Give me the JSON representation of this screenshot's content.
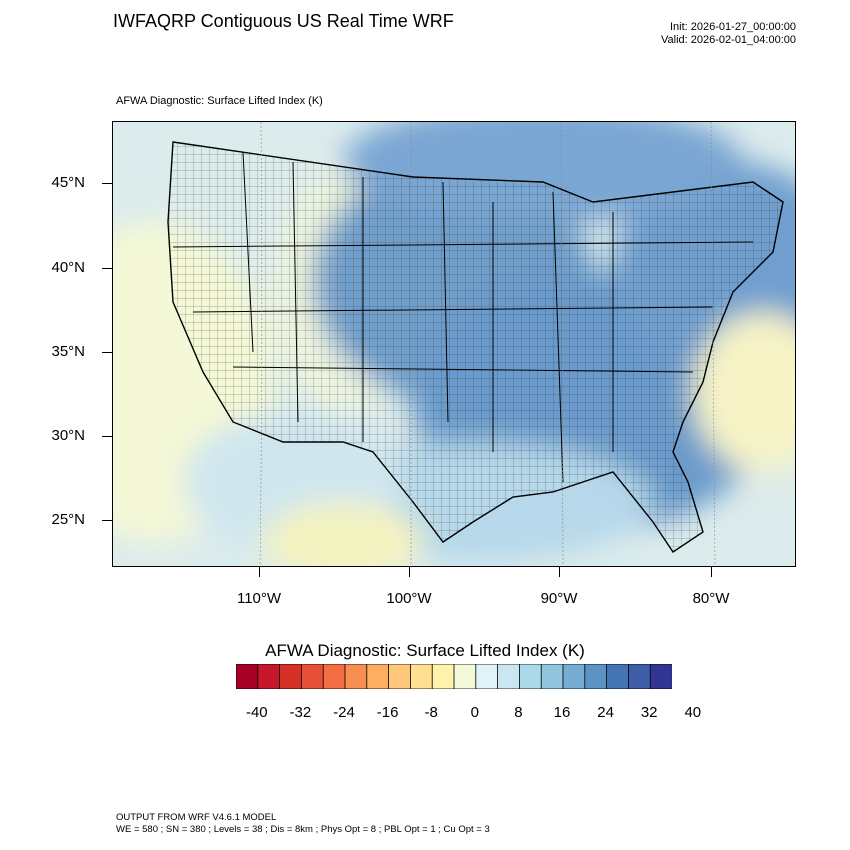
{
  "header": {
    "title": "IWFAQRP Contiguous US Real Time WRF",
    "init": "Init: 2026-01-27_00:00:00",
    "valid": "Valid: 2026-02-01_04:00:00"
  },
  "map": {
    "subtitle": "AFWA Diagnostic: Surface Lifted Index   (K)",
    "lat_labels": [
      "45°N",
      "40°N",
      "35°N",
      "30°N",
      "25°N"
    ],
    "lon_labels": [
      "110°W",
      "100°W",
      "90°W",
      "80°W"
    ]
  },
  "colorbar": {
    "title": "AFWA Diagnostic: Surface Lifted Index  (K)",
    "labels": [
      "-40",
      "-32",
      "-24",
      "-16",
      "-8",
      "0",
      "8",
      "16",
      "24",
      "32",
      "40"
    ],
    "colors": [
      "#a50026",
      "#c7172b",
      "#d73027",
      "#e8503a",
      "#f46d43",
      "#f88f52",
      "#fdae61",
      "#fec77a",
      "#fee090",
      "#fff2ab",
      "#f4fad8",
      "#e0f3f8",
      "#c8e7f1",
      "#abd9e9",
      "#92c5de",
      "#74add1",
      "#5a93c4",
      "#4575b4",
      "#3e5fa8",
      "#313695"
    ]
  },
  "footer": {
    "model": "OUTPUT FROM WRF V4.6.1 MODEL",
    "config": "WE = 580 ; SN = 380 ; Levels = 38 ; Dis = 8km ; Phys Opt = 8 ; PBL Opt = 1 ; Cu Opt = 3"
  }
}
